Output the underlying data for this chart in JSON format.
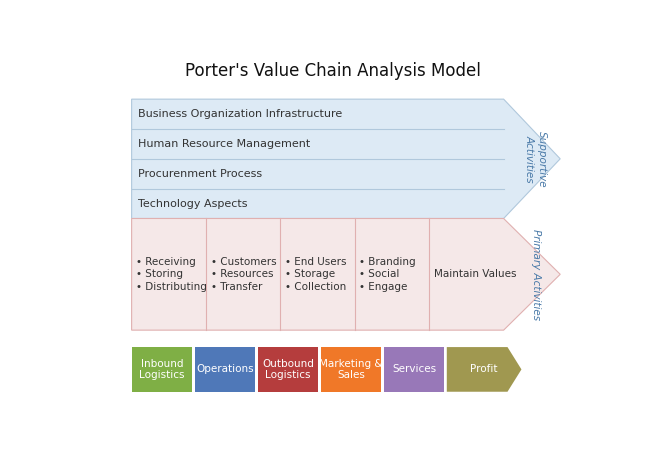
{
  "title": "Porter's Value Chain Analysis Model",
  "background_color": "#ffffff",
  "support_bg": "#ddeaf5",
  "primary_bg": "#f5e8e8",
  "right_arrow_bg": "#e8f2f8",
  "support_rows": [
    "Business Organization Infrastructure",
    "Human Resource Management",
    "Procurenment Process",
    "Technology Aspects"
  ],
  "primary_columns": [
    {
      "items": [
        "• Receiving",
        "• Storing",
        "• Distributing"
      ]
    },
    {
      "items": [
        "• Customers",
        "• Resources",
        "• Transfer"
      ]
    },
    {
      "items": [
        "• End Users",
        "• Storage",
        "• Collection"
      ]
    },
    {
      "items": [
        "• Branding",
        "• Social",
        "• Engage"
      ]
    },
    {
      "items": [
        "Maintain Values"
      ]
    }
  ],
  "bottom_labels": [
    "Inbound\nLogistics",
    "Operations",
    "Outbound\nLogistics",
    "Marketing &\nSales",
    "Services",
    "Profit"
  ],
  "bottom_colors": [
    "#7faf45",
    "#4f78b8",
    "#b53d3d",
    "#f07828",
    "#9878b8",
    "#a09850"
  ],
  "support_label": "Supportive\nActivities",
  "primary_label": "Primary Activities",
  "text_color": "#333333",
  "support_line_color": "#b0c8dc",
  "primary_line_color": "#e0b0b0"
}
